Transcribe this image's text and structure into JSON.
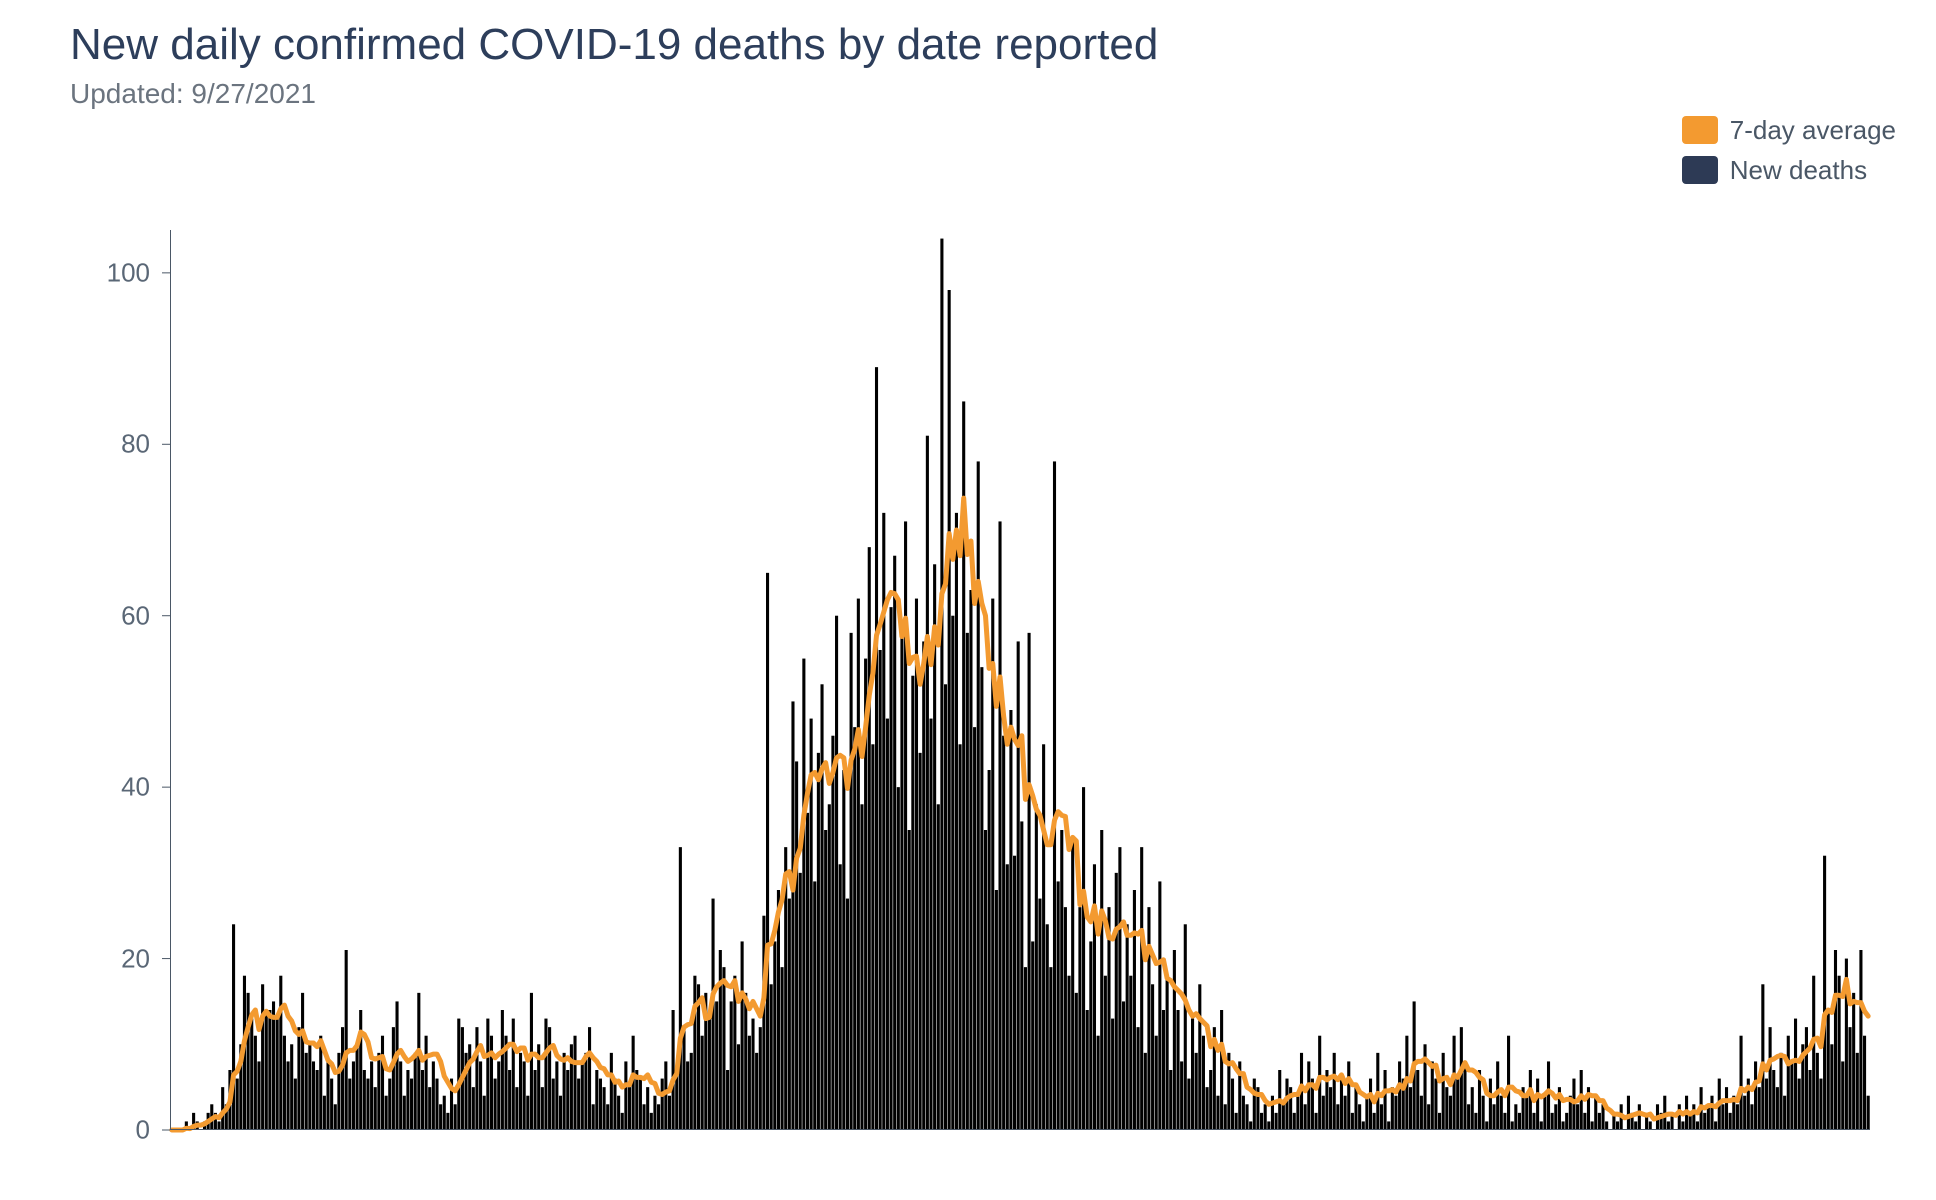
{
  "title": "New daily confirmed COVID-19 deaths by date reported",
  "subtitle": "Updated: 9/27/2021",
  "legend": {
    "avg_label": "7-day average",
    "bars_label": "New deaths",
    "avg_color": "#f39a30",
    "bars_color": "#2d3a55"
  },
  "chart": {
    "type": "bar+line",
    "background_color": "#ffffff",
    "axis_color": "#4a5766",
    "tick_font_size": 26,
    "title_font_size": 44,
    "subtitle_font_size": 28,
    "legend_font_size": 26,
    "ylim": [
      0,
      105
    ],
    "yticks": [
      0,
      20,
      40,
      60,
      80,
      100
    ],
    "line_width": 5,
    "bar_gap_ratio": 0.15,
    "bars": [
      0,
      0,
      0,
      0,
      1,
      0,
      2,
      1,
      0,
      1,
      2,
      3,
      2,
      1,
      5,
      3,
      7,
      24,
      6,
      10,
      18,
      16,
      13,
      11,
      8,
      17,
      14,
      14,
      15,
      13,
      18,
      11,
      8,
      10,
      6,
      12,
      16,
      9,
      10,
      8,
      7,
      11,
      4,
      8,
      6,
      3,
      9,
      12,
      21,
      6,
      8,
      10,
      14,
      7,
      6,
      8,
      5,
      9,
      11,
      4,
      6,
      12,
      15,
      8,
      4,
      7,
      6,
      9,
      16,
      7,
      11,
      5,
      8,
      6,
      3,
      4,
      2,
      6,
      3,
      13,
      12,
      9,
      10,
      5,
      12,
      8,
      4,
      13,
      11,
      6,
      8,
      14,
      11,
      7,
      13,
      5,
      9,
      8,
      4,
      16,
      7,
      10,
      5,
      13,
      12,
      6,
      8,
      4,
      9,
      7,
      10,
      11,
      6,
      8,
      9,
      12,
      3,
      7,
      6,
      5,
      3,
      9,
      6,
      4,
      2,
      8,
      5,
      11,
      7,
      6,
      3,
      5,
      2,
      4,
      3,
      6,
      8,
      4,
      14,
      7,
      33,
      12,
      8,
      9,
      18,
      17,
      11,
      16,
      13,
      27,
      15,
      21,
      19,
      7,
      15,
      18,
      10,
      22,
      16,
      11,
      13,
      9,
      12,
      25,
      65,
      17,
      22,
      28,
      19,
      33,
      27,
      50,
      43,
      30,
      55,
      37,
      48,
      29,
      44,
      52,
      35,
      38,
      46,
      60,
      31,
      42,
      27,
      58,
      47,
      62,
      38,
      55,
      68,
      45,
      89,
      56,
      72,
      48,
      61,
      67,
      40,
      59,
      71,
      35,
      53,
      62,
      44,
      57,
      81,
      48,
      66,
      38,
      104,
      52,
      98,
      60,
      72,
      45,
      85,
      58,
      63,
      47,
      78,
      54,
      35,
      42,
      62,
      28,
      71,
      46,
      31,
      49,
      32,
      57,
      36,
      19,
      58,
      22,
      38,
      27,
      45,
      24,
      19,
      78,
      29,
      35,
      26,
      18,
      34,
      16,
      26,
      40,
      14,
      22,
      31,
      11,
      35,
      18,
      26,
      13,
      30,
      33,
      15,
      24,
      18,
      28,
      12,
      33,
      9,
      26,
      17,
      11,
      29,
      14,
      18,
      7,
      21,
      14,
      8,
      24,
      6,
      13,
      9,
      17,
      11,
      5,
      7,
      12,
      4,
      14,
      3,
      9,
      6,
      2,
      8,
      4,
      3,
      1,
      6,
      5,
      2,
      3,
      1,
      4,
      2,
      7,
      3,
      6,
      5,
      2,
      4,
      9,
      3,
      8,
      6,
      2,
      11,
      4,
      7,
      5,
      9,
      3,
      6,
      4,
      8,
      2,
      5,
      3,
      1,
      4,
      6,
      2,
      9,
      3,
      7,
      1,
      5,
      4,
      8,
      6,
      11,
      5,
      15,
      7,
      4,
      10,
      3,
      8,
      6,
      2,
      9,
      5,
      4,
      11,
      6,
      12,
      8,
      3,
      5,
      2,
      7,
      4,
      1,
      6,
      3,
      8,
      4,
      2,
      11,
      1,
      3,
      2,
      5,
      4,
      7,
      2,
      6,
      1,
      4,
      8,
      2,
      3,
      5,
      1,
      2,
      4,
      6,
      3,
      7,
      2,
      5,
      1,
      4,
      2,
      3,
      1,
      0,
      2,
      1,
      3,
      0,
      4,
      2,
      1,
      3,
      0,
      2,
      1,
      0,
      3,
      2,
      4,
      1,
      2,
      0,
      3,
      1,
      4,
      2,
      3,
      1,
      5,
      2,
      3,
      4,
      1,
      6,
      3,
      5,
      2,
      4,
      3,
      11,
      4,
      6,
      3,
      8,
      5,
      17,
      6,
      12,
      7,
      5,
      9,
      4,
      11,
      8,
      13,
      6,
      10,
      12,
      7,
      18,
      9,
      6,
      32,
      14,
      10,
      21,
      18,
      8,
      20,
      12,
      16,
      9,
      21,
      11,
      4
    ]
  }
}
